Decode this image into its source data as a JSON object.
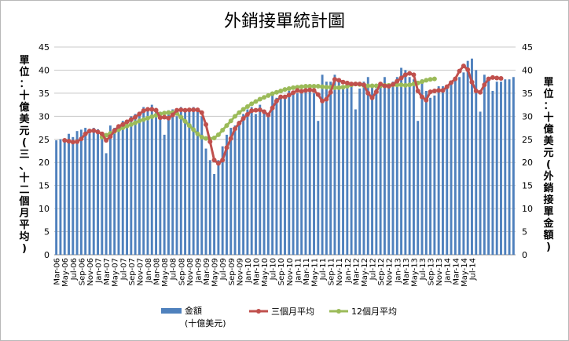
{
  "chart_data": {
    "type": "bar",
    "title": "外銷接單統計圖",
    "ylabel_left": "單位：十億美元(三、十二個月平均)",
    "ylabel_right": "單位：十億美元(外銷接單金額)",
    "ylim": [
      0,
      45
    ],
    "yticks": [
      0,
      5,
      10,
      15,
      20,
      25,
      30,
      35,
      40,
      45
    ],
    "grid": true,
    "legend_position": "bottom",
    "x_tick_labels": [
      "Mar-06",
      "May-06",
      "Jul-06",
      "Sep-06",
      "Nov-06",
      "Jan-07",
      "Mar-07",
      "May-07",
      "Jul-07",
      "Sep-07",
      "Nov-07",
      "Jan-08",
      "Mar-08",
      "May-08",
      "Jul-08",
      "Sep-08",
      "Nov-08",
      "Jan-09",
      "Mar-09",
      "May-09",
      "Jul-09",
      "Sep-09",
      "Nov-09",
      "Jan-10",
      "Mar-10",
      "May-10",
      "Jul-10",
      "Sep-10",
      "Nov-10",
      "Jan-11",
      "Mar-11",
      "May-11",
      "Jul-11",
      "Sep-11",
      "Nov-11",
      "Jan-12",
      "Mar-12",
      "May-12",
      "Jul-12",
      "Sep-12",
      "Nov-12",
      "Jan-13",
      "Mar-13",
      "May-13",
      "Jul-13",
      "Sep-13",
      "Nov-13",
      "Jan-14",
      "Mar-14",
      "May-14",
      "Jul-14"
    ],
    "series": [
      {
        "name": "金額",
        "name_sub": "(十億美元)",
        "type": "bar",
        "color": "#4f81bd",
        "start_index": 0,
        "values": [
          24.8,
          25.0,
          24.9,
          26.2,
          25.5,
          26.8,
          27.1,
          27.5,
          26.3,
          27.5,
          27.2,
          25.8,
          22.0,
          28.0,
          27.5,
          27.8,
          29.0,
          28.5,
          30.0,
          30.5,
          31.0,
          32.0,
          31.2,
          32.5,
          31.8,
          31.0,
          26.0,
          31.3,
          31.5,
          30.0,
          32.0,
          31.5,
          31.2,
          32.0,
          31.0,
          30.0,
          23.0,
          20.5,
          17.5,
          20.5,
          23.5,
          26.0,
          27.5,
          28.0,
          29.0,
          30.5,
          31.5,
          32.0,
          30.5,
          32.5,
          31.0,
          30.0,
          34.5,
          34.0,
          34.0,
          34.5,
          35.5,
          35.5,
          35.0,
          35.5,
          36.0,
          35.5,
          35.0,
          29.0,
          39.0,
          37.5,
          37.5,
          39.0,
          38.0,
          36.5,
          37.5,
          37.0,
          31.5,
          36.0,
          37.5,
          38.5,
          36.5,
          36.0,
          36.5,
          38.5,
          37.0,
          37.5,
          38.5,
          40.5,
          40.0,
          38.5,
          38.0,
          29.0,
          38.0,
          35.5,
          34.0,
          34.5,
          36.5,
          36.5,
          36.0,
          37.5,
          38.0,
          38.5,
          39.5,
          42.0,
          42.5,
          40.0,
          31.0,
          39.0,
          38.5,
          35.5,
          37.5,
          37.5,
          38.0,
          38.0,
          38.5
        ]
      },
      {
        "name": "三個月平均",
        "type": "line",
        "color": "#c0504d",
        "markers": true,
        "start_index": 2,
        "values": [
          24.8,
          24.6,
          24.4,
          24.5,
          25.1,
          26.2,
          26.8,
          26.9,
          26.6,
          26.2,
          24.8,
          25.6,
          26.9,
          27.8,
          28.2,
          28.8,
          29.3,
          29.8,
          30.5,
          31.2,
          31.5,
          31.5,
          31.3,
          29.7,
          29.8,
          29.6,
          30.3,
          31.3,
          31.4,
          31.3,
          31.4,
          31.4,
          31.4,
          30.8,
          28.2,
          24.5,
          20.5,
          19.8,
          20.5,
          23.2,
          25.2,
          27.3,
          28.5,
          29.5,
          30.4,
          31.2,
          31.3,
          31.4,
          31.0,
          30.3,
          31.8,
          33.3,
          34.2,
          34.2,
          34.6,
          35.1,
          35.6,
          35.4,
          35.6,
          35.7,
          35.6,
          34.7,
          33.3,
          33.7,
          35.2,
          38.0,
          37.8,
          37.4,
          37.2,
          37.0,
          37.0,
          37.0,
          36.8,
          35.0,
          34.0,
          35.3,
          37.0,
          36.6,
          36.5,
          36.9,
          37.6,
          38.3,
          39.0,
          39.3,
          39.0,
          35.5,
          34.2,
          33.5,
          35.3,
          35.5,
          35.6,
          35.6,
          36.4,
          37.3,
          38.1,
          39.8,
          40.9,
          40.1,
          37.4,
          35.5,
          35.2,
          36.8,
          38.1,
          38.4,
          38.3,
          38.2
        ]
      },
      {
        "name": "12個月平均",
        "type": "line",
        "color": "#9bbb59",
        "markers": true,
        "start_index": 11,
        "values": [
          25.5,
          25.9,
          26.3,
          26.7,
          27.1,
          27.5,
          27.9,
          28.2,
          28.6,
          29.0,
          29.3,
          29.6,
          29.9,
          30.2,
          30.5,
          30.7,
          30.8,
          30.8,
          30.6,
          29.8,
          28.9,
          28.0,
          27.1,
          26.2,
          25.5,
          25.2,
          25.1,
          25.3,
          26.0,
          27.0,
          28.0,
          29.0,
          30.0,
          30.8,
          31.5,
          32.1,
          32.7,
          33.2,
          33.7,
          34.1,
          34.5,
          34.9,
          35.2,
          35.5,
          35.8,
          36.0,
          36.2,
          36.3,
          36.4,
          36.5,
          36.5,
          36.5,
          36.5,
          36.4,
          36.3,
          36.3,
          36.2,
          36.2,
          36.3,
          36.5,
          36.8,
          37.0,
          36.9,
          36.7,
          36.6,
          36.6,
          36.6,
          36.6,
          36.7,
          36.7,
          36.8,
          36.8,
          36.8,
          36.7,
          36.8,
          37.0,
          37.2,
          37.5,
          37.8,
          38.0,
          38.1
        ]
      }
    ]
  }
}
